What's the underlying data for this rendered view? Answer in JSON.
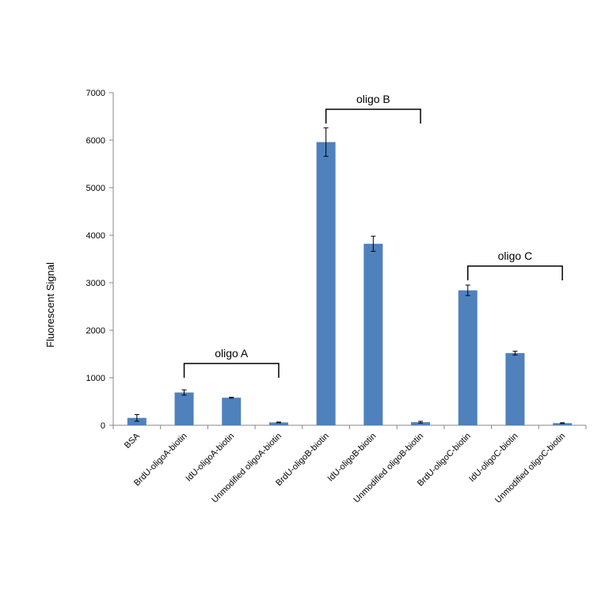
{
  "chart_data": {
    "type": "bar",
    "ylabel": "Fluorescent  Signal",
    "ylim": [
      0,
      7000
    ],
    "yticks": [
      0,
      1000,
      2000,
      3000,
      4000,
      5000,
      6000,
      7000
    ],
    "grid": false,
    "bar_color": "#4f81bd",
    "categories": [
      "BSA",
      "BrdU-oligoA-biotin",
      "IdU-oligoA-biotin",
      "Unmodified oligoA-biotin",
      "BrdU-oligoB-biotin",
      "IdU-oligoB-biotin",
      "Unmodified oligoB-biotin",
      "BrdU-oligoC-biotin",
      "IdU-oligoC-biotin",
      "Unmodified oligoC-biotin"
    ],
    "values": [
      155,
      690,
      580,
      60,
      5960,
      3820,
      65,
      2840,
      1520,
      45
    ],
    "errors": [
      70,
      55,
      10,
      8,
      300,
      160,
      18,
      110,
      40,
      8
    ],
    "groups": [
      {
        "label": "oligo A",
        "from": 1,
        "to": 3,
        "level": 1300
      },
      {
        "label": "oligo B",
        "from": 4,
        "to": 6,
        "level": 6650
      },
      {
        "label": "oligo C",
        "from": 7,
        "to": 9,
        "level": 3350
      }
    ]
  }
}
